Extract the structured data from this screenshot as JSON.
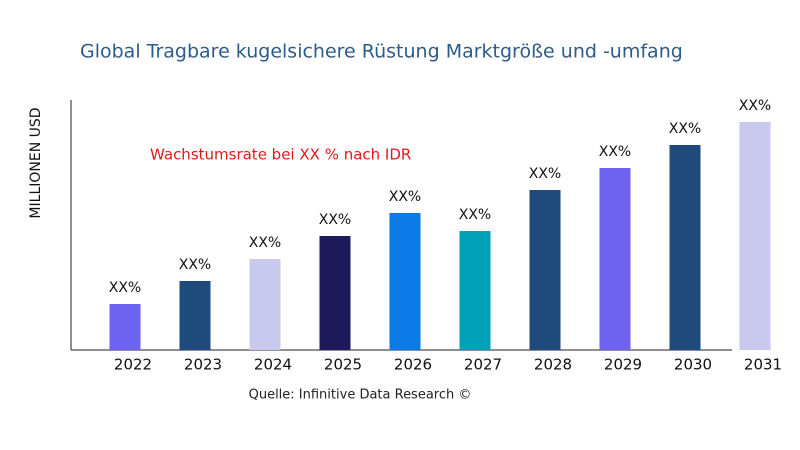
{
  "chart_data": {
    "type": "bar",
    "title": "Global Tragbare kugelsichere Rüstung Marktgröße und -umfang",
    "y_label": "MILLIONEN USD",
    "annotation": "Wachstumsrate bei XX % nach IDR",
    "source": "Quelle: Infinitive Data Research ©",
    "categories": [
      "2022",
      "2023",
      "2024",
      "2025",
      "2026",
      "2027",
      "2028",
      "2029",
      "2030",
      "2031"
    ],
    "values": [
      46,
      69,
      91,
      114,
      137,
      119,
      160,
      182,
      205,
      228
    ],
    "value_labels": [
      "XX%",
      "XX%",
      "XX%",
      "XX%",
      "XX%",
      "XX%",
      "XX%",
      "XX%",
      "XX%",
      "XX%"
    ],
    "colors": [
      "#6e62f0",
      "#1f4a7c",
      "#c9c9f0",
      "#1e1958",
      "#0b79e6",
      "#00a0b8",
      "#1f4a7c",
      "#6e62f0",
      "#1f4a7c",
      "#c9c9f0"
    ],
    "ylim": [
      0,
      250
    ]
  }
}
